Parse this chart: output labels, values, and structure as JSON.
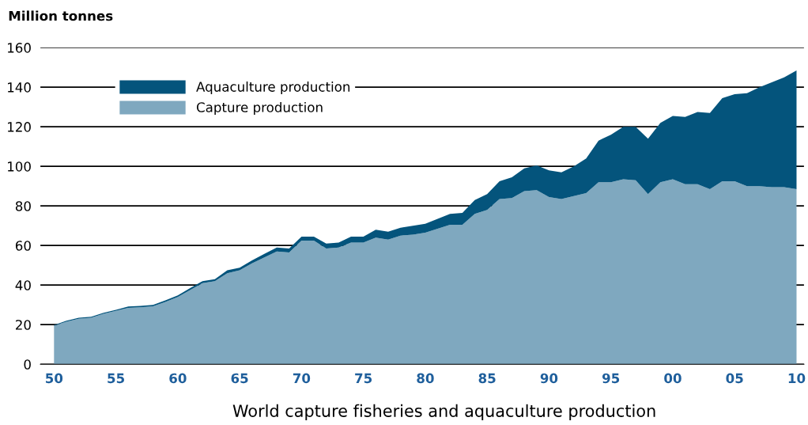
{
  "chart_data": {
    "type": "area",
    "stacked": true,
    "title": "World capture fisheries and aquaculture production",
    "ylabel": "Million tonnes",
    "x": [
      1950,
      1951,
      1952,
      1953,
      1954,
      1955,
      1956,
      1957,
      1958,
      1959,
      1960,
      1961,
      1962,
      1963,
      1964,
      1965,
      1966,
      1967,
      1968,
      1969,
      1970,
      1971,
      1972,
      1973,
      1974,
      1975,
      1976,
      1977,
      1978,
      1979,
      1980,
      1981,
      1982,
      1983,
      1984,
      1985,
      1986,
      1987,
      1988,
      1989,
      1990,
      1991,
      1992,
      1993,
      1994,
      1995,
      1996,
      1997,
      1998,
      1999,
      2000,
      2001,
      2002,
      2003,
      2004,
      2005,
      2006,
      2007,
      2008,
      2009,
      2010
    ],
    "series": [
      {
        "name": "Capture production",
        "color": "#7fa8bf",
        "values": [
          19.5,
          21.5,
          23,
          23.5,
          25.5,
          27,
          28.5,
          28.8,
          29.3,
          31.5,
          34,
          37.5,
          41,
          42,
          46,
          47.5,
          51,
          54,
          57,
          56.5,
          62.5,
          62.5,
          58.5,
          59,
          61.5,
          61.5,
          64,
          63,
          65,
          65.5,
          66.5,
          68.5,
          70.5,
          70.5,
          76,
          78,
          83.5,
          84,
          87.5,
          88,
          84.5,
          83.5,
          85,
          86.5,
          92,
          92,
          93.5,
          93,
          86,
          92,
          93.5,
          91,
          91,
          88.5,
          92.5,
          92.5,
          90,
          90,
          89.5,
          89.5,
          88.5
        ]
      },
      {
        "name": "Aquaculture production",
        "color": "#04547c",
        "values": [
          0.3,
          0.5,
          0.5,
          0.5,
          0.5,
          0.5,
          0.7,
          0.7,
          0.7,
          0.8,
          0.8,
          1,
          1,
          1,
          1.5,
          1.3,
          1.5,
          1.8,
          2,
          2,
          2,
          2,
          2.5,
          2.5,
          3,
          3,
          4,
          4,
          4,
          4.5,
          4.5,
          5,
          5.5,
          6,
          7,
          8,
          9,
          10.5,
          11.5,
          12.5,
          13.5,
          13.5,
          15,
          17.5,
          21,
          24,
          26.5,
          27,
          28,
          30,
          32,
          34,
          36.5,
          38.5,
          42,
          44,
          47,
          50,
          53,
          55.5,
          60
        ]
      }
    ],
    "xlim": [
      1948.9,
      2010.6
    ],
    "xticks": [
      {
        "value": 1950,
        "label": "50"
      },
      {
        "value": 1955,
        "label": "55"
      },
      {
        "value": 1960,
        "label": "60"
      },
      {
        "value": 1965,
        "label": "65"
      },
      {
        "value": 1970,
        "label": "70"
      },
      {
        "value": 1975,
        "label": "75"
      },
      {
        "value": 1980,
        "label": "80"
      },
      {
        "value": 1985,
        "label": "85"
      },
      {
        "value": 1990,
        "label": "90"
      },
      {
        "value": 1995,
        "label": "95"
      },
      {
        "value": 2000,
        "label": "00"
      },
      {
        "value": 2005,
        "label": "05"
      },
      {
        "value": 2010,
        "label": "10"
      }
    ],
    "ylim": [
      0,
      160
    ],
    "yticks": [
      0,
      20,
      40,
      60,
      80,
      100,
      120,
      140,
      160
    ],
    "grid": "y",
    "legend": "top left"
  }
}
